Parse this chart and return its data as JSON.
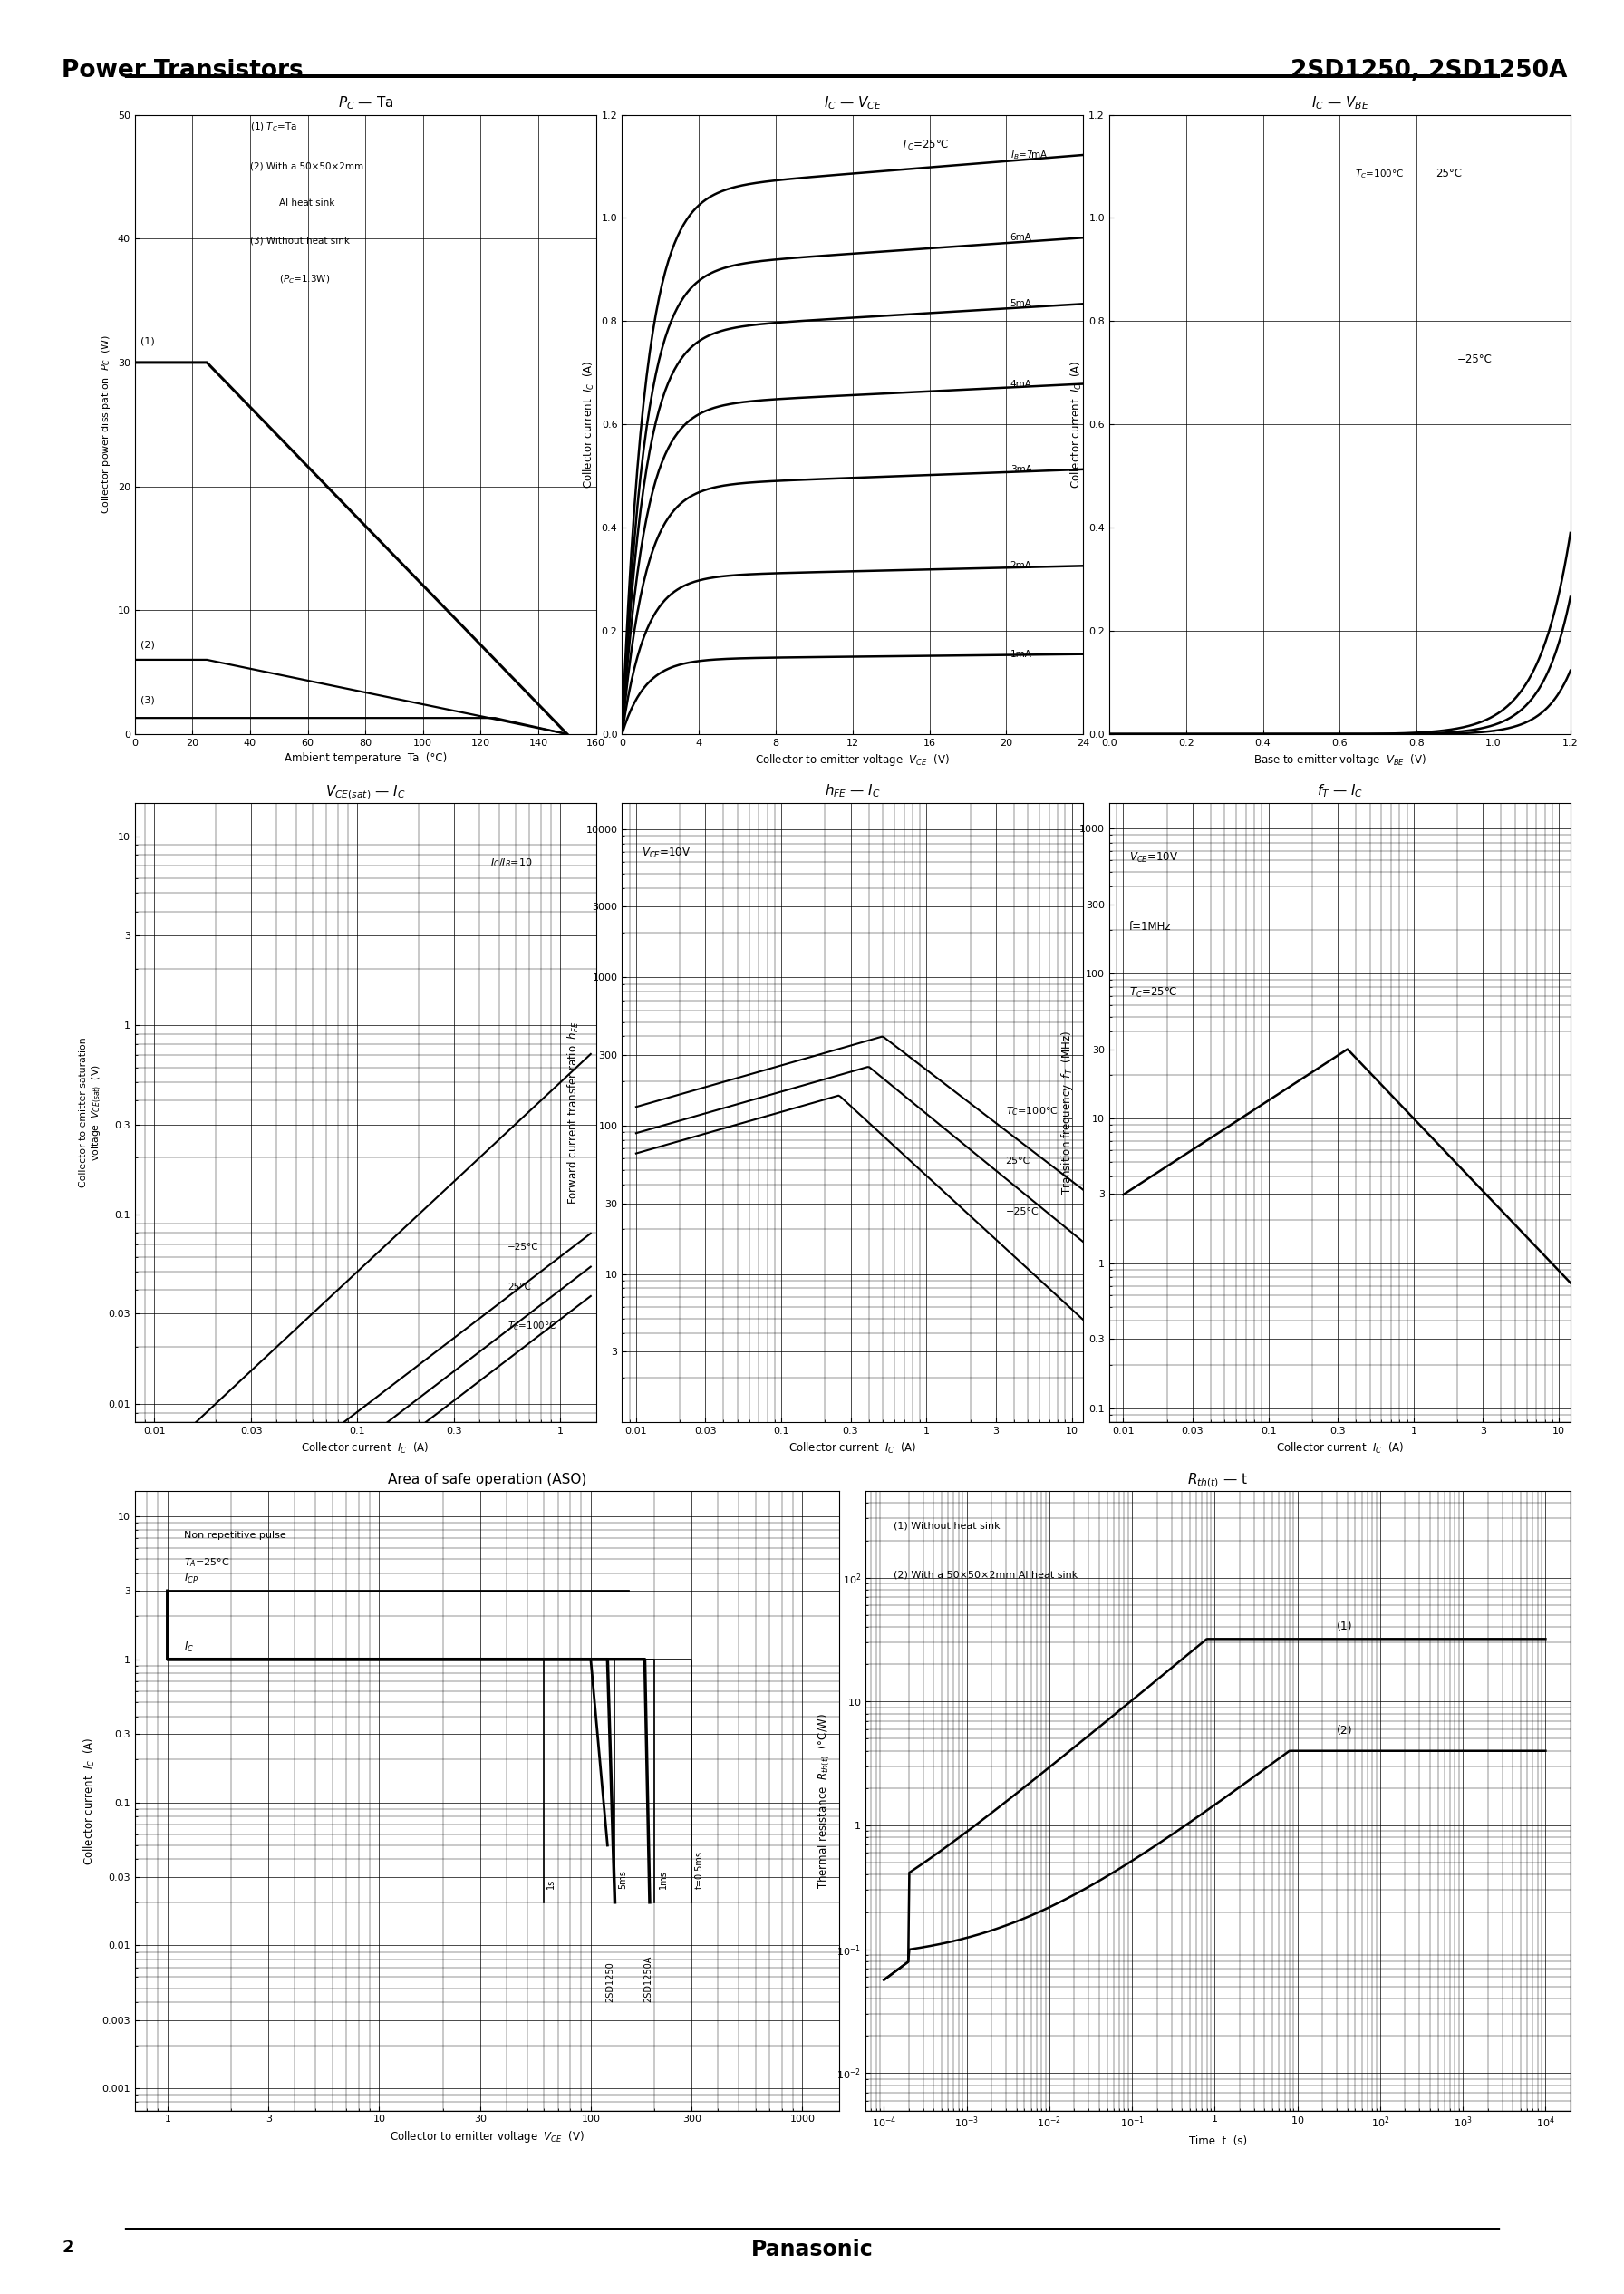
{
  "page_title_left": "Power Transistors",
  "page_title_right": "2SD1250, 2SD1250A",
  "page_number": "2",
  "page_brand": "Panasonic",
  "chart1_title": "P_C — Ta",
  "chart2_title": "I_C — V_CE",
  "chart3_title": "I_C — V_BE",
  "chart4_title": "V_CE(sat) — I_C",
  "chart5_title": "h_FE — I_C",
  "chart6_title": "f_T — I_C",
  "chart7_title": "Area of safe operation (ASO)",
  "chart8_title": "R_th(t) — t"
}
